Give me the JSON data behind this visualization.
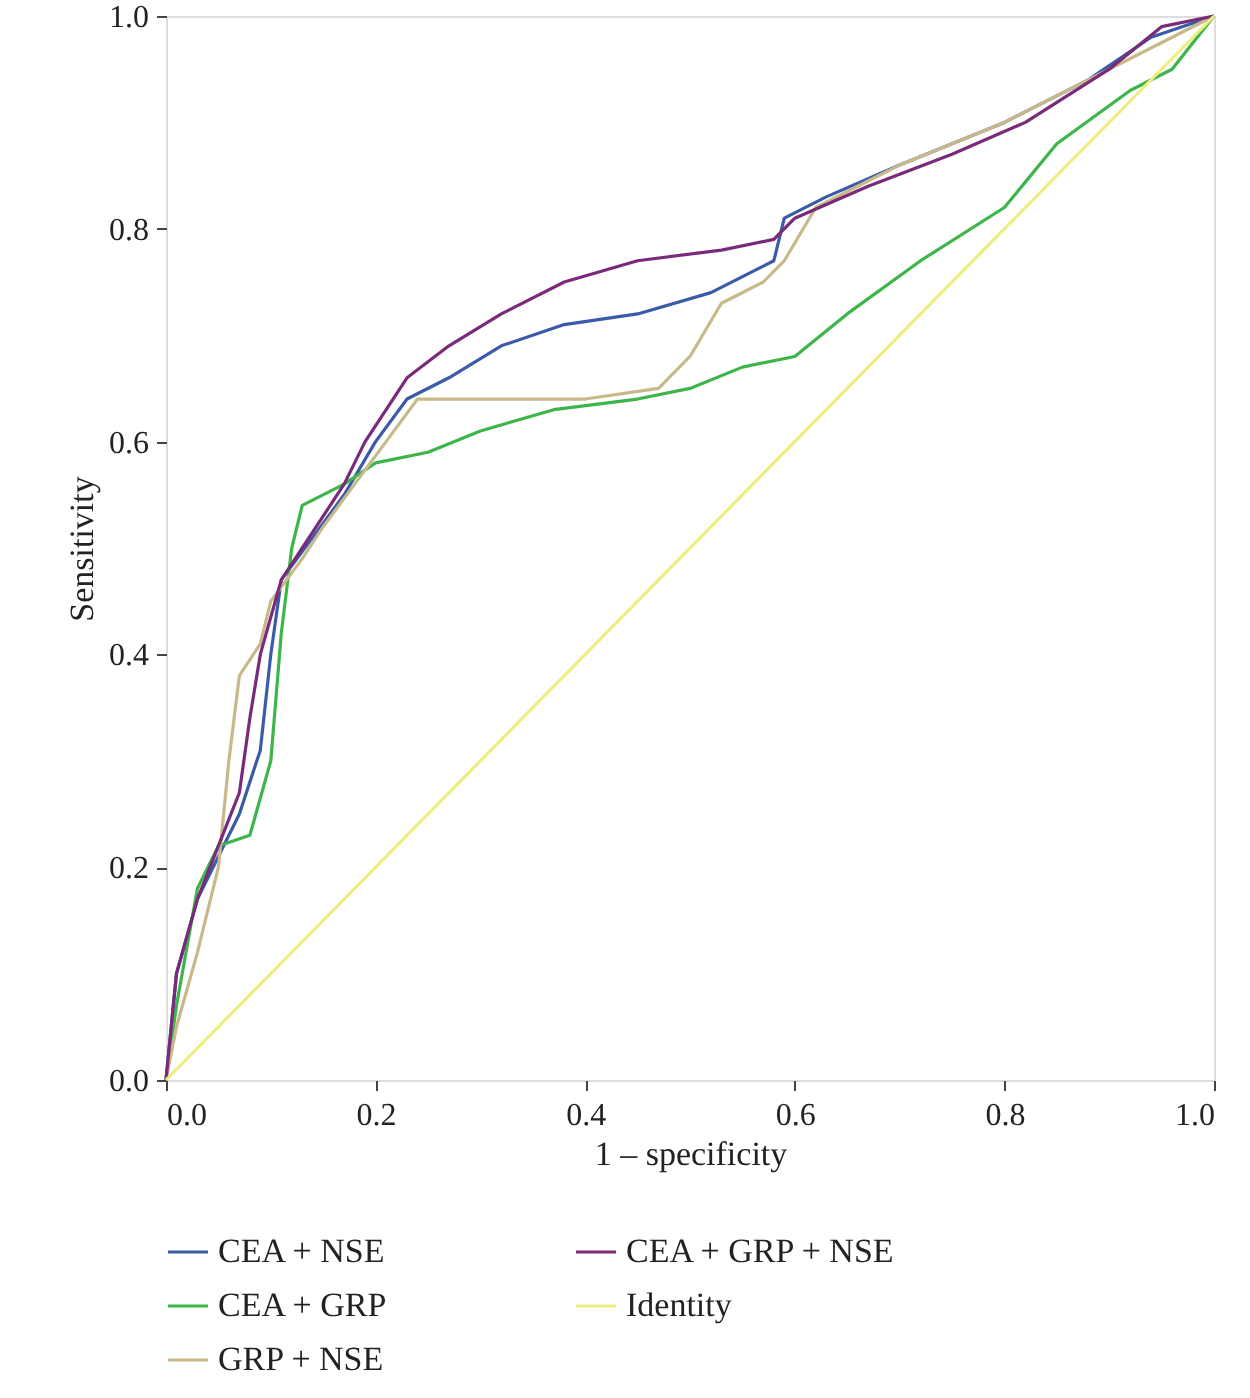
{
  "chart_data": {
    "type": "line",
    "xlabel": "1 – specificity",
    "ylabel": "Sensitivity",
    "xlim": [
      0,
      1
    ],
    "ylim": [
      0,
      1
    ],
    "xticks": [
      {
        "value": 0,
        "label": "0.0"
      },
      0.2,
      0.4,
      0.6,
      0.8,
      {
        "value": 1,
        "label": "1.0"
      }
    ],
    "yticks": [
      {
        "value": 0,
        "label": "0.0"
      },
      0.2,
      0.4,
      0.6,
      0.8,
      {
        "value": 1,
        "label": "1.0"
      }
    ],
    "grid": false,
    "legend": "bottom",
    "line_style": "solid",
    "marker": "none",
    "series": [
      {
        "name": "CEA + NSE",
        "color": "#3a5ba8",
        "x": [
          0,
          0.01,
          0.03,
          0.05,
          0.07,
          0.09,
          0.1,
          0.11,
          0.14,
          0.17,
          0.2,
          0.23,
          0.27,
          0.32,
          0.38,
          0.45,
          0.52,
          0.58,
          0.59,
          0.63,
          0.7,
          0.8,
          0.88,
          0.94,
          1
        ],
        "values": [
          0,
          0.1,
          0.17,
          0.21,
          0.25,
          0.31,
          0.4,
          0.47,
          0.51,
          0.55,
          0.6,
          0.64,
          0.66,
          0.69,
          0.71,
          0.72,
          0.74,
          0.77,
          0.81,
          0.83,
          0.86,
          0.9,
          0.94,
          0.98,
          1
        ]
      },
      {
        "name": "CEA + GRP",
        "color": "#3cb54a",
        "x": [
          0,
          0.01,
          0.03,
          0.05,
          0.08,
          0.1,
          0.11,
          0.12,
          0.13,
          0.17,
          0.2,
          0.25,
          0.3,
          0.37,
          0.45,
          0.5,
          0.55,
          0.6,
          0.65,
          0.72,
          0.8,
          0.85,
          0.92,
          0.96,
          1
        ],
        "values": [
          0,
          0.07,
          0.18,
          0.22,
          0.23,
          0.3,
          0.42,
          0.5,
          0.54,
          0.56,
          0.58,
          0.59,
          0.61,
          0.63,
          0.64,
          0.65,
          0.67,
          0.68,
          0.72,
          0.77,
          0.82,
          0.88,
          0.93,
          0.95,
          1
        ]
      },
      {
        "name": "GRP + NSE",
        "color": "#c8b98a",
        "x": [
          0,
          0.01,
          0.03,
          0.05,
          0.06,
          0.07,
          0.09,
          0.1,
          0.13,
          0.15,
          0.18,
          0.21,
          0.24,
          0.3,
          0.4,
          0.47,
          0.5,
          0.53,
          0.57,
          0.59,
          0.62,
          0.7,
          0.8,
          0.9,
          1
        ],
        "values": [
          0,
          0.05,
          0.12,
          0.2,
          0.3,
          0.38,
          0.41,
          0.45,
          0.49,
          0.52,
          0.56,
          0.6,
          0.64,
          0.64,
          0.64,
          0.65,
          0.68,
          0.73,
          0.75,
          0.77,
          0.82,
          0.86,
          0.9,
          0.95,
          1
        ]
      },
      {
        "name": "CEA + GRP + NSE",
        "color": "#7a2a7a",
        "x": [
          0,
          0.01,
          0.03,
          0.05,
          0.07,
          0.08,
          0.09,
          0.11,
          0.13,
          0.17,
          0.19,
          0.23,
          0.27,
          0.32,
          0.38,
          0.45,
          0.53,
          0.58,
          0.6,
          0.67,
          0.75,
          0.82,
          0.9,
          0.95,
          1
        ],
        "values": [
          0,
          0.1,
          0.17,
          0.22,
          0.27,
          0.34,
          0.4,
          0.47,
          0.5,
          0.56,
          0.6,
          0.66,
          0.69,
          0.72,
          0.75,
          0.77,
          0.78,
          0.79,
          0.81,
          0.84,
          0.87,
          0.9,
          0.95,
          0.99,
          1
        ]
      },
      {
        "name": "Identity",
        "color": "#eeee80",
        "x": [
          0,
          1
        ],
        "values": [
          0,
          1
        ]
      }
    ]
  }
}
